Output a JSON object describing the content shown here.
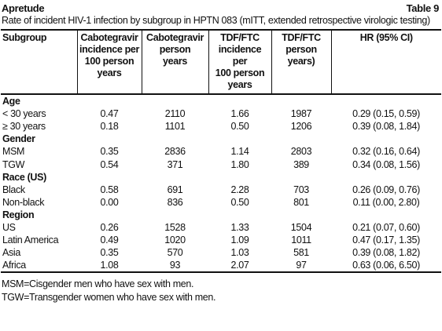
{
  "header": {
    "title": "Apretude",
    "label": "Table 9"
  },
  "caption": "Rate of incident HIV-1 infection by subgroup in HPTN 083 (mITT, extended retrospective virologic testing)",
  "table": {
    "columns": [
      "Subgroup",
      "Cabotegravir\nincidence per\n100 person\nyears",
      "Cabotegravir\nperson\nyears",
      "TDF/FTC\nincidence per\n100 person\nyears",
      "TDF/FTC\nperson\nyears)",
      "HR (95% CI)"
    ],
    "sections": [
      {
        "label": "Age",
        "rows": [
          [
            "< 30 years",
            "0.47",
            "2110",
            "1.66",
            "1987",
            "0.29 (0.15, 0.59)"
          ],
          [
            "≥ 30 years",
            "0.18",
            "1101",
            "0.50",
            "1206",
            "0.39 (0.08, 1.84)"
          ]
        ]
      },
      {
        "label": "Gender",
        "rows": [
          [
            "MSM",
            "0.35",
            "2836",
            "1.14",
            "2803",
            "0.32 (0.16, 0.64)"
          ],
          [
            "TGW",
            "0.54",
            "371",
            "1.80",
            "389",
            "0.34 (0.08, 1.56)"
          ]
        ]
      },
      {
        "label": "Race (US)",
        "rows": [
          [
            "Black",
            "0.58",
            "691",
            "2.28",
            "703",
            "0.26 (0.09, 0.76)"
          ],
          [
            "Non-black",
            "0.00",
            "836",
            "0.50",
            "801",
            "0.11 (0.00, 2.80)"
          ]
        ]
      },
      {
        "label": "Region",
        "rows": [
          [
            "US",
            "0.26",
            "1528",
            "1.33",
            "1504",
            "0.21 (0.07, 0.60)"
          ],
          [
            "Latin America",
            "0.49",
            "1020",
            "1.09",
            "1011",
            "0.47 (0.17, 1.35)"
          ],
          [
            "Asia",
            "0.35",
            "570",
            "1.03",
            "581",
            "0.39 (0.08, 1.82)"
          ],
          [
            "Africa",
            "1.08",
            "93",
            "2.07",
            "97",
            "0.63 (0.06, 6.50)"
          ]
        ]
      }
    ]
  },
  "footnotes": [
    "MSM=Cisgender men who have sex with men.",
    "TGW=Transgender women who have sex with men."
  ]
}
